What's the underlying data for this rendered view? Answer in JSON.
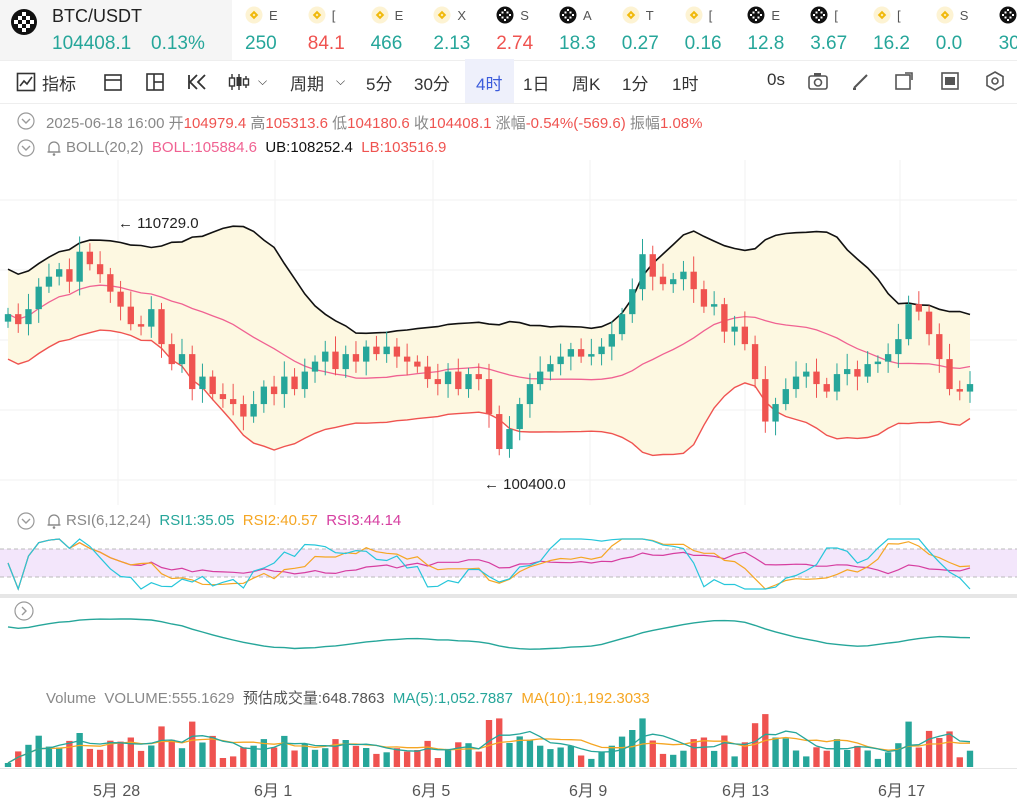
{
  "pair": {
    "symbol": "BTC/USDT",
    "price": "104408.1",
    "change": "0.13%"
  },
  "tickers": [
    {
      "name": "E",
      "value": "250",
      "color": "#26a69a",
      "icon": "bnb-icon"
    },
    {
      "name": "[",
      "value": "84.1",
      "color": "#ef5350",
      "icon": "bnb-icon"
    },
    {
      "name": "E",
      "value": "466",
      "color": "#26a69a",
      "icon": "bnb-icon"
    },
    {
      "name": "X",
      "value": "2.13",
      "color": "#26a69a",
      "icon": "bnb-icon"
    },
    {
      "name": "S",
      "value": "2.74",
      "color": "#ef5350",
      "icon": "token-icon"
    },
    {
      "name": "A",
      "value": "18.3",
      "color": "#26a69a",
      "icon": "token-icon"
    },
    {
      "name": "T",
      "value": "0.27",
      "color": "#26a69a",
      "icon": "bnb-icon"
    },
    {
      "name": "[",
      "value": "0.16",
      "color": "#26a69a",
      "icon": "bnb-icon"
    },
    {
      "name": "E",
      "value": "12.8",
      "color": "#26a69a",
      "icon": "token-icon"
    },
    {
      "name": "[",
      "value": "3.67",
      "color": "#26a69a",
      "icon": "token-icon"
    },
    {
      "name": "[",
      "value": "16.2",
      "color": "#26a69a",
      "icon": "bnb-icon"
    },
    {
      "name": "S",
      "value": "0.0",
      "color": "#26a69a",
      "icon": "bnb-icon"
    },
    {
      "name": "",
      "value": "30",
      "color": "#26a69a",
      "icon": "token-icon"
    }
  ],
  "toolbar": {
    "indicator": "指标",
    "period": "周期",
    "intervals": [
      "5分",
      "30分",
      "4时",
      "1日",
      "周K",
      "1分",
      "1时"
    ],
    "active_interval": "4时",
    "countdown": "0s"
  },
  "ohlc": {
    "date": "2025-06-18 16:00",
    "open_label": "开",
    "open": "104979.4",
    "high_label": "高",
    "high": "105313.6",
    "low_label": "低",
    "low": "104180.6",
    "close_label": "收",
    "close": "104408.1",
    "change_label": "涨幅",
    "change": "-0.54%(-569.6)",
    "amp_label": "振幅",
    "amp": "1.08%"
  },
  "boll": {
    "name": "BOLL(20,2)",
    "boll": "BOLL:105884.6",
    "ub": "UB:108252.4",
    "lb": "LB:103516.9"
  },
  "chart_annotations": {
    "high": "110729.0",
    "low": "100400.0"
  },
  "rsi": {
    "name": "RSI(6,12,24)",
    "rsi1": "RSI1:35.05",
    "rsi2": "RSI2:40.57",
    "rsi3": "RSI3:44.14"
  },
  "volume": {
    "name": "Volume",
    "volume": "VOLUME:555.1629",
    "est": "预估成交量:648.7863",
    "ma5": "MA(5):1,052.7887",
    "ma10": "MA(10):1,192.3033"
  },
  "x_labels": [
    "5月 28",
    "6月 1",
    "6月 5",
    "6月 9",
    "6月 13",
    "6月 17"
  ],
  "colors": {
    "up": "#26a69a",
    "down": "#ef5350",
    "boll": "#f06292",
    "ub": "#111111",
    "band": "#fdf8e1"
  },
  "chart_data": {
    "type": "candlestick",
    "interval": "4h",
    "price_range": [
      100400,
      110729
    ],
    "close_path": [
      107200,
      106800,
      107400,
      108300,
      108700,
      109000,
      108500,
      109700,
      109200,
      108800,
      108100,
      107500,
      106800,
      106700,
      107400,
      106000,
      105200,
      105600,
      104200,
      104700,
      104000,
      103800,
      103600,
      103100,
      103600,
      104300,
      104000,
      104700,
      104200,
      104900,
      105300,
      105700,
      105000,
      105600,
      105300,
      105900,
      105600,
      105900,
      105500,
      105300,
      105100,
      104600,
      104400,
      104900,
      104200,
      104800,
      104600,
      103200,
      101800,
      102600,
      103600,
      104400,
      104900,
      105200,
      105500,
      105800,
      105500,
      105600,
      105900,
      106400,
      107200,
      108200,
      109600,
      108700,
      108400,
      108600,
      108900,
      108200,
      107500,
      107600,
      106500,
      106700,
      106000,
      104600,
      102900,
      103600,
      104200,
      104700,
      104900,
      104400,
      104100,
      104800,
      105000,
      104700,
      105200,
      105300,
      105600,
      106200,
      107600,
      107300,
      106400,
      105400,
      104200,
      104100,
      104400
    ]
  }
}
